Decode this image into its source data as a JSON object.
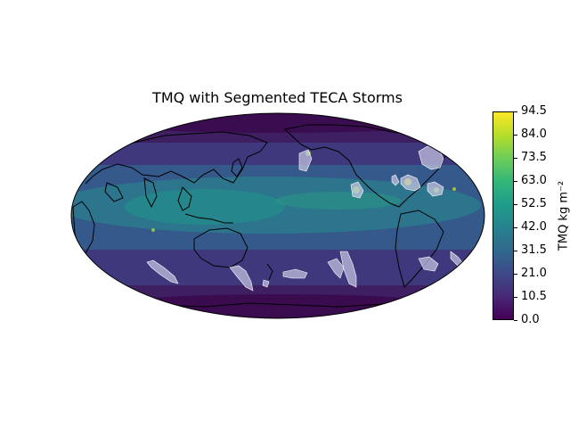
{
  "title": "TMQ with Segmented TECA Storms",
  "projection": "Robinson",
  "central_longitude": 180,
  "colormap": "viridis",
  "colorbar": {
    "label": "TMQ kg m⁻²",
    "min": 0.0,
    "max": 94.5,
    "ticks": [
      "0.0",
      "10.5",
      "21.0",
      "31.5",
      "42.0",
      "52.5",
      "63.0",
      "73.5",
      "84.0",
      "94.5"
    ]
  },
  "storm_mask_color": "#c9c9e6",
  "coastline_color": "#000000"
}
